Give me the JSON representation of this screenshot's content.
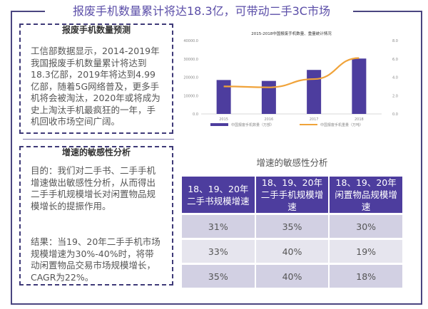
{
  "title": "报废手机数量累计将达18.3亿，可带动二手3C市场",
  "forecast_box": {
    "heading": "报废手机数量预测",
    "text": "工信部数据显示，2014-2019年我国报废手机数量累计将达到18.3亿部，2019年将达到4.99亿部，随着5G网络普及，更多手机将会被淘汰，2020年或将成为史上淘汰手机最疯狂的一年，手机回收市场空间广阔。"
  },
  "sensitivity_box": {
    "heading": "增速的敏感性分析",
    "purpose": "目的：我们对二手书、二手手机增速做出敏感性分析，从而得出二手手机规模增长对闲置物品规模增长的提振作用。",
    "result": "结果：当19、20年二手手机市场规模增速为30%-40%时，将带动闲置物品交易市场规模增长，CAGR为22%。"
  },
  "chart_data": {
    "type": "bar+line",
    "title": "2015-2018中国报废手机数量、重量统计情况",
    "categories": [
      "2015",
      "2016",
      "2017",
      "2018"
    ],
    "series": [
      {
        "name": "中国报废手机数量（万部）",
        "type": "bar",
        "axis": "left",
        "values": [
          18500,
          18000,
          24000,
          30200
        ],
        "color": "#4d3d9e"
      },
      {
        "name": "中国报废手机重量（万吨）",
        "type": "line",
        "axis": "right",
        "values": [
          3.0,
          2.9,
          3.8,
          6.1
        ],
        "color": "#f0a33a"
      }
    ],
    "y_left": {
      "range": [
        0,
        40000
      ],
      "ticks": [
        "0.0",
        "10000.0",
        "20000.0",
        "30000.0",
        "40000.0"
      ]
    },
    "y_right": {
      "range": [
        0,
        8
      ],
      "ticks": [
        "0.0",
        "2.0",
        "4.0",
        "6.0",
        "8.0"
      ]
    },
    "legend": "bottom"
  },
  "table": {
    "title": "增速的敏感性分析",
    "headers": [
      "18、19、20年二手书规模增速",
      "18、19、20年二手手机规模增速",
      "18、19、20年闲置物品规模增速"
    ],
    "rows": [
      [
        "31%",
        "35%",
        "30%"
      ],
      [
        "33%",
        "40%",
        "19%"
      ],
      [
        "35%",
        "40%",
        "18%"
      ]
    ]
  }
}
